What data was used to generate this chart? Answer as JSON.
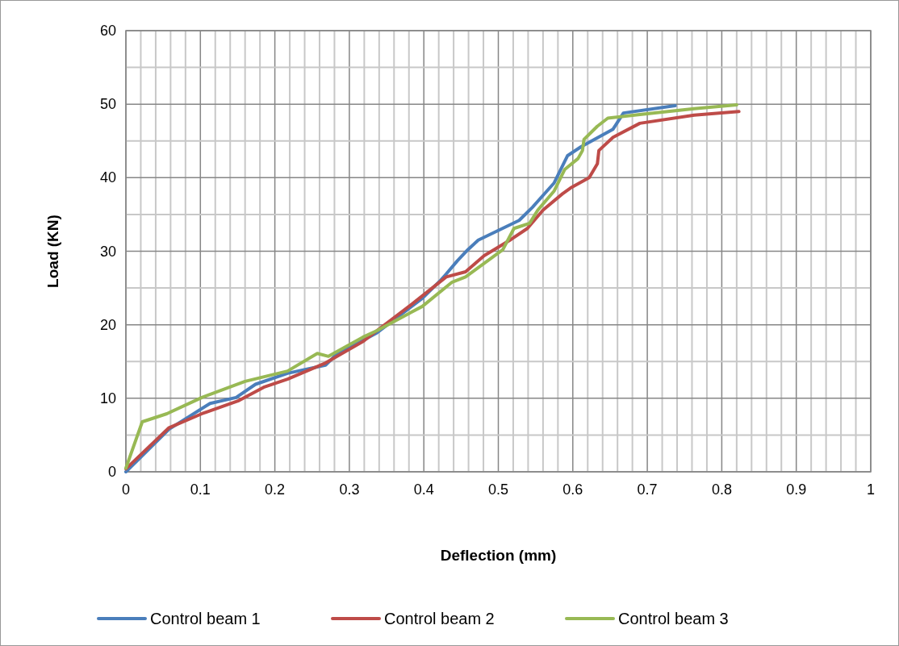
{
  "chart_data": {
    "type": "line",
    "xlabel": "Deflection (mm)",
    "ylabel": "Load (KN)",
    "xlim": [
      0,
      1
    ],
    "ylim": [
      0,
      60
    ],
    "xticks": [
      0,
      {
        "value": 0.02,
        "label": null
      },
      {
        "value": 0.04,
        "label": null
      },
      {
        "value": 0.06,
        "label": null
      },
      {
        "value": 0.08,
        "label": null
      },
      0.1,
      {
        "value": 0.12,
        "label": null
      },
      {
        "value": 0.14,
        "label": null
      },
      {
        "value": 0.16,
        "label": null
      },
      {
        "value": 0.18,
        "label": null
      },
      0.2,
      {
        "value": 0.22,
        "label": null
      },
      {
        "value": 0.24,
        "label": null
      },
      {
        "value": 0.26,
        "label": null
      },
      {
        "value": 0.28,
        "label": null
      },
      0.3,
      {
        "value": 0.32,
        "label": null
      },
      {
        "value": 0.34,
        "label": null
      },
      {
        "value": 0.36,
        "label": null
      },
      {
        "value": 0.38,
        "label": null
      },
      0.4,
      {
        "value": 0.42,
        "label": null
      },
      {
        "value": 0.44,
        "label": null
      },
      {
        "value": 0.46,
        "label": null
      },
      {
        "value": 0.48,
        "label": null
      },
      0.5,
      {
        "value": 0.52,
        "label": null
      },
      {
        "value": 0.54,
        "label": null
      },
      {
        "value": 0.56,
        "label": null
      },
      {
        "value": 0.58,
        "label": null
      },
      0.6,
      {
        "value": 0.62,
        "label": null
      },
      {
        "value": 0.64,
        "label": null
      },
      {
        "value": 0.66,
        "label": null
      },
      {
        "value": 0.68,
        "label": null
      },
      0.7,
      {
        "value": 0.72,
        "label": null
      },
      {
        "value": 0.74,
        "label": null
      },
      {
        "value": 0.76,
        "label": null
      },
      {
        "value": 0.78,
        "label": null
      },
      0.8,
      {
        "value": 0.82,
        "label": null
      },
      {
        "value": 0.84,
        "label": null
      },
      {
        "value": 0.86,
        "label": null
      },
      {
        "value": 0.88,
        "label": null
      },
      0.9,
      {
        "value": 0.92,
        "label": null
      },
      {
        "value": 0.94,
        "label": null
      },
      {
        "value": 0.96,
        "label": null
      },
      {
        "value": 0.98,
        "label": null
      },
      1
    ],
    "yticks": [
      0,
      {
        "value": 5,
        "label": null
      },
      10,
      {
        "value": 15,
        "label": null
      },
      20,
      {
        "value": 25,
        "label": null
      },
      30,
      {
        "value": 35,
        "label": null
      },
      40,
      {
        "value": 45,
        "label": null
      },
      50,
      {
        "value": 55,
        "label": null
      },
      60
    ],
    "grid": true,
    "legend": "bottom",
    "marker": "none",
    "line_style": "solid",
    "series": [
      {
        "name": "Control beam 1",
        "color": "#4a7ebb",
        "x": [
          0,
          0.058,
          0.113,
          0.148,
          0.174,
          0.217,
          0.268,
          0.282,
          0.337,
          0.398,
          0.423,
          0.43,
          0.445,
          0.459,
          0.473,
          0.528,
          0.546,
          0.575,
          0.593,
          0.611,
          0.654,
          0.668,
          0.7375
        ],
        "values": [
          0,
          5.8,
          9.3,
          10.1,
          11.9,
          13.4,
          14.5,
          15.9,
          18.9,
          23.6,
          26.1,
          26.9,
          28.7,
          30.2,
          31.5,
          34.2,
          36,
          39.3,
          43,
          44.2,
          46.6,
          48.8,
          49.8
        ]
      },
      {
        "name": "Control beam 2",
        "color": "#be4b48",
        "x": [
          0,
          0.058,
          0.102,
          0.152,
          0.185,
          0.217,
          0.268,
          0.318,
          0.337,
          0.384,
          0.43,
          0.456,
          0.481,
          0.517,
          0.539,
          0.56,
          0.586,
          0.597,
          0.622,
          0.633,
          0.635,
          0.654,
          0.69,
          0.763,
          0.823
        ],
        "values": [
          0.4,
          6,
          7.9,
          9.7,
          11.5,
          12.6,
          14.8,
          17.7,
          19.2,
          22.8,
          26.5,
          27.2,
          29.4,
          31.6,
          33.1,
          35.6,
          37.8,
          38.6,
          40,
          41.9,
          43.7,
          45.5,
          47.4,
          48.5,
          49
        ]
      },
      {
        "name": "Control beam 3",
        "color": "#98b954",
        "x": [
          0,
          0.022,
          0.055,
          0.102,
          0.16,
          0.217,
          0.257,
          0.272,
          0.318,
          0.337,
          0.398,
          0.438,
          0.456,
          0.506,
          0.521,
          0.542,
          0.553,
          0.575,
          0.589,
          0.607,
          0.613,
          0.615,
          0.633,
          0.647,
          0.69,
          0.763,
          0.82
        ],
        "values": [
          0.5,
          6.8,
          7.9,
          10.1,
          12.3,
          13.7,
          16.1,
          15.7,
          18.3,
          19.2,
          22.5,
          25.8,
          26.5,
          30.2,
          33.1,
          33.8,
          35.6,
          38.2,
          41.1,
          42.6,
          43.7,
          45.2,
          47,
          48.1,
          48.6,
          49.4,
          49.9
        ]
      }
    ]
  }
}
